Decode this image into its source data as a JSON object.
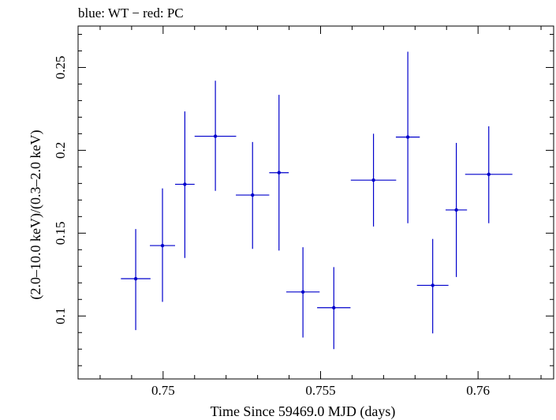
{
  "header": {
    "title": "blue: WT − red: PC"
  },
  "chart_data": {
    "type": "scatter",
    "title": "blue: WT − red: PC",
    "xlabel": "Time Since 59469.0 MJD (days)",
    "ylabel": "(2.0–10.0 keV)/(0.3–2.0 keV)",
    "xlim": [
      0.7473,
      0.7624
    ],
    "ylim": [
      0.062,
      0.275
    ],
    "xticks": [
      0.75,
      0.755,
      0.76
    ],
    "xtick_labels": [
      "0.75",
      "0.755",
      "0.76"
    ],
    "yticks": [
      0.1,
      0.15,
      0.2,
      0.25
    ],
    "ytick_labels": [
      "0.1",
      "0.15",
      "0.2",
      "0.25"
    ],
    "grid": false,
    "color": "#0000cc",
    "series": [
      {
        "points": [
          {
            "x": 0.74913,
            "xerr": 0.00047,
            "y": 0.1225,
            "ylo": 0.0915,
            "yhi": 0.1525
          },
          {
            "x": 0.74998,
            "xerr": 0.0004,
            "y": 0.1425,
            "ylo": 0.1085,
            "yhi": 0.177
          },
          {
            "x": 0.75069,
            "xerr": 0.00031,
            "y": 0.1795,
            "ylo": 0.135,
            "yhi": 0.2235
          },
          {
            "x": 0.75166,
            "xerr": 0.00066,
            "y": 0.2085,
            "ylo": 0.1755,
            "yhi": 0.242
          },
          {
            "x": 0.75284,
            "xerr": 0.00053,
            "y": 0.173,
            "ylo": 0.1405,
            "yhi": 0.205
          },
          {
            "x": 0.75368,
            "xerr": 0.00031,
            "y": 0.1865,
            "ylo": 0.1395,
            "yhi": 0.2335
          },
          {
            "x": 0.75444,
            "xerr": 0.00053,
            "y": 0.1145,
            "ylo": 0.087,
            "yhi": 0.1415
          },
          {
            "x": 0.75542,
            "xerr": 0.00053,
            "y": 0.105,
            "ylo": 0.08,
            "yhi": 0.1295
          },
          {
            "x": 0.75668,
            "xerr": 0.00072,
            "y": 0.182,
            "ylo": 0.154,
            "yhi": 0.21
          },
          {
            "x": 0.75777,
            "xerr": 0.00038,
            "y": 0.208,
            "ylo": 0.156,
            "yhi": 0.2595
          },
          {
            "x": 0.75856,
            "xerr": 0.0005,
            "y": 0.1185,
            "ylo": 0.0895,
            "yhi": 0.1465
          },
          {
            "x": 0.75931,
            "xerr": 0.00034,
            "y": 0.164,
            "ylo": 0.1235,
            "yhi": 0.2045
          },
          {
            "x": 0.76034,
            "xerr": 0.00075,
            "y": 0.1855,
            "ylo": 0.156,
            "yhi": 0.2145
          }
        ]
      }
    ]
  }
}
